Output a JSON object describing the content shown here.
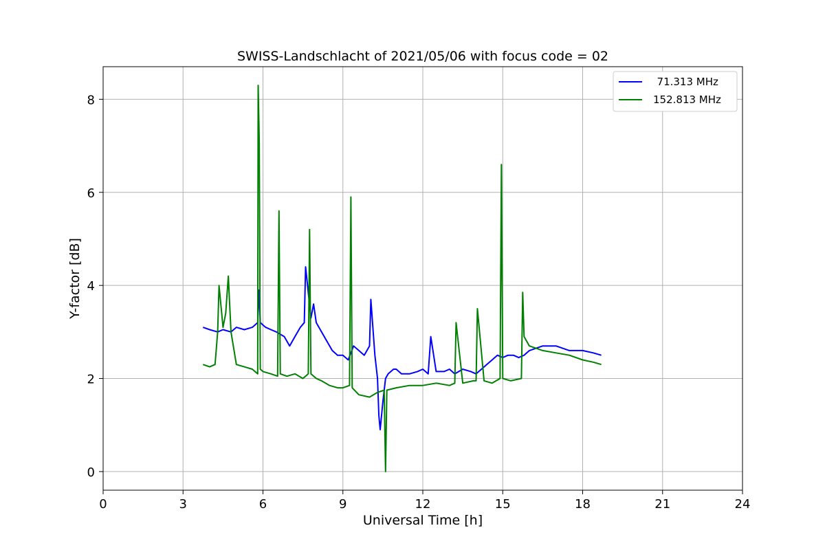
{
  "chart_data": {
    "type": "line",
    "title": "SWISS-Landschlacht of 2021/05/06 with focus code = 02",
    "xlabel": "Universal Time [h]",
    "ylabel": "Y-factor [dB]",
    "xlim": [
      0,
      24
    ],
    "ylim": [
      -0.4,
      8.7
    ],
    "xticks": [
      0,
      3,
      6,
      9,
      12,
      15,
      18,
      21,
      24
    ],
    "yticks": [
      0,
      2,
      4,
      6,
      8
    ],
    "xtick_labels": [
      "0",
      "3",
      "6",
      "9",
      "12",
      "15",
      "18",
      "21",
      "24"
    ],
    "ytick_labels": [
      "0",
      "2",
      "4",
      "6",
      "8"
    ],
    "grid": true,
    "legend_position": "top-right",
    "series": [
      {
        "name": "  71.313 MHz",
        "color": "#0000ff",
        "x": [
          3.75,
          4.0,
          4.3,
          4.5,
          4.8,
          5.0,
          5.3,
          5.6,
          5.8,
          5.85,
          5.9,
          6.1,
          6.3,
          6.5,
          6.8,
          7.0,
          7.2,
          7.4,
          7.55,
          7.6,
          7.8,
          7.9,
          8.0,
          8.2,
          8.4,
          8.6,
          8.8,
          9.0,
          9.2,
          9.4,
          9.6,
          9.8,
          10.0,
          10.05,
          10.2,
          10.3,
          10.35,
          10.4,
          10.5,
          10.6,
          10.7,
          10.9,
          11.0,
          11.2,
          11.5,
          11.8,
          12.0,
          12.2,
          12.3,
          12.5,
          12.8,
          13.0,
          13.2,
          13.5,
          13.8,
          14.0,
          14.2,
          14.4,
          14.6,
          14.8,
          15.0,
          15.2,
          15.4,
          15.6,
          15.8,
          16.0,
          16.5,
          17.0,
          17.5,
          18.0,
          18.4,
          18.7
        ],
        "y": [
          3.1,
          3.05,
          3.0,
          3.05,
          3.0,
          3.1,
          3.05,
          3.1,
          3.2,
          3.9,
          3.2,
          3.1,
          3.05,
          3.0,
          2.9,
          2.7,
          2.9,
          3.1,
          3.2,
          4.4,
          3.3,
          3.6,
          3.2,
          3.0,
          2.8,
          2.6,
          2.5,
          2.5,
          2.4,
          2.7,
          2.6,
          2.5,
          2.7,
          3.7,
          2.5,
          2.0,
          1.2,
          0.9,
          1.5,
          2.0,
          2.1,
          2.2,
          2.2,
          2.1,
          2.1,
          2.15,
          2.2,
          2.1,
          2.9,
          2.15,
          2.15,
          2.2,
          2.1,
          2.2,
          2.15,
          2.1,
          2.2,
          2.3,
          2.4,
          2.5,
          2.45,
          2.5,
          2.5,
          2.45,
          2.5,
          2.6,
          2.7,
          2.7,
          2.6,
          2.6,
          2.55,
          2.5
        ]
      },
      {
        "name": "152.813 MHz",
        "color": "#008000",
        "x": [
          3.75,
          4.0,
          4.2,
          4.3,
          4.35,
          4.5,
          4.6,
          4.7,
          4.8,
          5.0,
          5.3,
          5.6,
          5.8,
          5.82,
          5.86,
          5.9,
          6.0,
          6.3,
          6.55,
          6.6,
          6.65,
          6.9,
          7.2,
          7.5,
          7.7,
          7.75,
          7.8,
          8.0,
          8.2,
          8.5,
          8.8,
          9.0,
          9.25,
          9.3,
          9.35,
          9.6,
          10.0,
          10.3,
          10.55,
          10.6,
          10.65,
          11.0,
          11.5,
          12.0,
          12.5,
          13.0,
          13.2,
          13.25,
          13.5,
          13.9,
          14.0,
          14.05,
          14.3,
          14.6,
          14.9,
          14.95,
          15.0,
          15.3,
          15.7,
          15.75,
          15.8,
          16.0,
          16.5,
          17.0,
          17.5,
          18.0,
          18.4,
          18.7
        ],
        "y": [
          2.3,
          2.25,
          2.3,
          3.0,
          4.0,
          3.1,
          3.4,
          4.2,
          3.0,
          2.3,
          2.25,
          2.2,
          2.1,
          8.3,
          7.1,
          2.2,
          2.15,
          2.1,
          2.05,
          5.6,
          2.1,
          2.05,
          2.1,
          2.0,
          2.1,
          5.2,
          2.1,
          2.0,
          1.95,
          1.85,
          1.8,
          1.8,
          1.85,
          5.9,
          1.8,
          1.65,
          1.6,
          1.7,
          1.75,
          0.0,
          1.75,
          1.8,
          1.85,
          1.85,
          1.9,
          1.85,
          1.9,
          3.2,
          1.9,
          1.95,
          1.95,
          3.5,
          1.95,
          1.9,
          2.0,
          6.6,
          2.0,
          1.95,
          2.0,
          3.85,
          2.9,
          2.7,
          2.6,
          2.55,
          2.5,
          2.4,
          2.35,
          2.3
        ]
      }
    ]
  }
}
